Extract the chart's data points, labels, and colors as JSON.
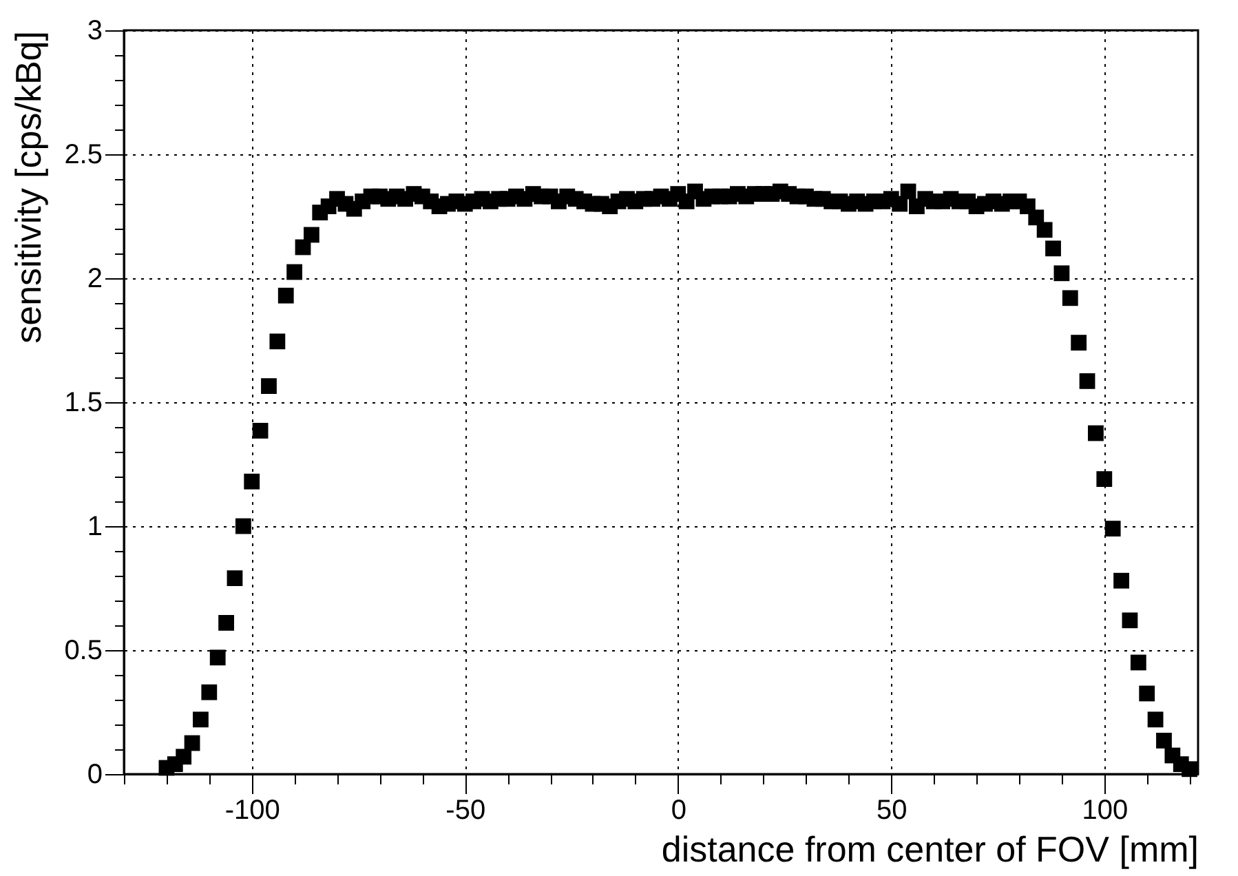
{
  "chart_data": {
    "type": "scatter",
    "xlabel": "distance from center of FOV  [mm]",
    "ylabel": "sensitivity  [cps/kBq]",
    "x": [
      -120,
      -118,
      -116,
      -114,
      -112,
      -110,
      -108,
      -106,
      -104,
      -102,
      -100,
      -98,
      -96,
      -94,
      -92,
      -90,
      -88,
      -86,
      -84,
      -82,
      -80,
      -78,
      -76,
      -74,
      -72,
      -70,
      -68,
      -66,
      -64,
      -62,
      -60,
      -58,
      -56,
      -54,
      -52,
      -50,
      -48,
      -46,
      -44,
      -42,
      -40,
      -38,
      -36,
      -34,
      -32,
      -30,
      -28,
      -26,
      -24,
      -22,
      -20,
      -18,
      -16,
      -14,
      -12,
      -10,
      -8,
      -6,
      -4,
      -2,
      0,
      2,
      4,
      6,
      8,
      10,
      12,
      14,
      16,
      18,
      20,
      22,
      24,
      26,
      28,
      30,
      32,
      34,
      36,
      38,
      40,
      42,
      44,
      46,
      48,
      50,
      52,
      54,
      56,
      58,
      60,
      62,
      64,
      66,
      68,
      70,
      72,
      74,
      76,
      78,
      80,
      82,
      84,
      86,
      88,
      90,
      92,
      94,
      96,
      98,
      100,
      102,
      104,
      106,
      108,
      110,
      112,
      114,
      116,
      118,
      120
    ],
    "series": [
      {
        "color": "#000000",
        "values": [
          0.025,
          0.04,
          0.07,
          0.125,
          0.22,
          0.33,
          0.47,
          0.61,
          0.79,
          1.0,
          1.18,
          1.385,
          1.565,
          1.745,
          1.93,
          2.025,
          2.125,
          2.175,
          2.265,
          2.29,
          2.32,
          2.3,
          2.28,
          2.31,
          2.33,
          2.33,
          2.32,
          2.33,
          2.32,
          2.34,
          2.33,
          2.31,
          2.29,
          2.3,
          2.31,
          2.3,
          2.31,
          2.32,
          2.31,
          2.32,
          2.32,
          2.33,
          2.32,
          2.34,
          2.33,
          2.33,
          2.31,
          2.33,
          2.32,
          2.31,
          2.3,
          2.3,
          2.29,
          2.31,
          2.32,
          2.31,
          2.32,
          2.32,
          2.33,
          2.32,
          2.34,
          2.31,
          2.35,
          2.32,
          2.33,
          2.33,
          2.33,
          2.34,
          2.33,
          2.34,
          2.34,
          2.34,
          2.35,
          2.34,
          2.33,
          2.33,
          2.32,
          2.32,
          2.31,
          2.31,
          2.3,
          2.31,
          2.3,
          2.31,
          2.31,
          2.32,
          2.3,
          2.35,
          2.29,
          2.32,
          2.31,
          2.31,
          2.32,
          2.31,
          2.31,
          2.29,
          2.3,
          2.31,
          2.3,
          2.31,
          2.31,
          2.29,
          2.245,
          2.195,
          2.12,
          2.02,
          1.92,
          1.74,
          1.585,
          1.375,
          1.19,
          0.99,
          0.78,
          0.62,
          0.45,
          0.325,
          0.22,
          0.135,
          0.075,
          0.04,
          0.02
        ]
      }
    ],
    "xlim": [
      -130,
      122
    ],
    "xticks": [
      {
        "value": -130,
        "label": null
      },
      {
        "value": -120,
        "label": null
      },
      {
        "value": -110,
        "label": null
      },
      -100,
      {
        "value": -90,
        "label": null
      },
      {
        "value": -80,
        "label": null
      },
      {
        "value": -70,
        "label": null
      },
      {
        "value": -60,
        "label": null
      },
      -50,
      {
        "value": -40,
        "label": null
      },
      {
        "value": -30,
        "label": null
      },
      {
        "value": -20,
        "label": null
      },
      {
        "value": -10,
        "label": null
      },
      0,
      {
        "value": 10,
        "label": null
      },
      {
        "value": 20,
        "label": null
      },
      {
        "value": 30,
        "label": null
      },
      {
        "value": 40,
        "label": null
      },
      50,
      {
        "value": 60,
        "label": null
      },
      {
        "value": 70,
        "label": null
      },
      {
        "value": 80,
        "label": null
      },
      {
        "value": 90,
        "label": null
      },
      100,
      {
        "value": 110,
        "label": null
      },
      {
        "value": 120,
        "label": null
      }
    ],
    "ylim": [
      0,
      3
    ],
    "yticks": [
      0,
      {
        "value": 0.1,
        "label": null
      },
      {
        "value": 0.2,
        "label": null
      },
      {
        "value": 0.3,
        "label": null
      },
      {
        "value": 0.4,
        "label": null
      },
      0.5,
      {
        "value": 0.6,
        "label": null
      },
      {
        "value": 0.7,
        "label": null
      },
      {
        "value": 0.8,
        "label": null
      },
      {
        "value": 0.9,
        "label": null
      },
      1,
      {
        "value": 1.1,
        "label": null
      },
      {
        "value": 1.2,
        "label": null
      },
      {
        "value": 1.3,
        "label": null
      },
      {
        "value": 1.4,
        "label": null
      },
      1.5,
      {
        "value": 1.6,
        "label": null
      },
      {
        "value": 1.7,
        "label": null
      },
      {
        "value": 1.8,
        "label": null
      },
      {
        "value": 1.9,
        "label": null
      },
      2,
      {
        "value": 2.1,
        "label": null
      },
      {
        "value": 2.2,
        "label": null
      },
      {
        "value": 2.3,
        "label": null
      },
      {
        "value": 2.4,
        "label": null
      },
      2.5,
      {
        "value": 2.6,
        "label": null
      },
      {
        "value": 2.7,
        "label": null
      },
      {
        "value": 2.8,
        "label": null
      },
      {
        "value": 2.9,
        "label": null
      },
      3
    ],
    "grid": true,
    "marker": "square"
  }
}
